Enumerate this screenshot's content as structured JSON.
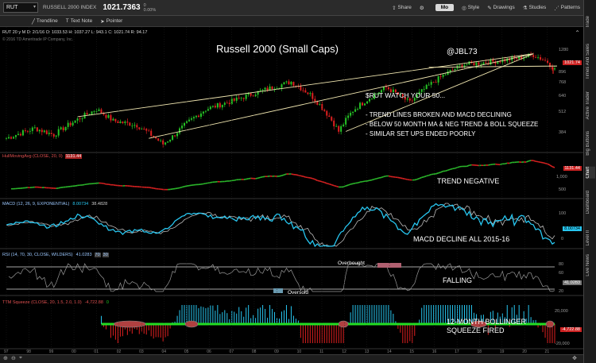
{
  "topbar": {
    "symbol": "RUT",
    "index_name": "RUSSELL 2000 INDEX",
    "last": "1021.7363",
    "change": "0",
    "change_pct": "0.00%",
    "share": "Share",
    "period": "Mo",
    "style": "Style",
    "drawings": "Drawings",
    "studies": "Studies",
    "patterns": "Patterns"
  },
  "toolbar": {
    "trendline": "Trendline",
    "textnote": "Text Note",
    "pointer": "Pointer"
  },
  "ohlc": "RUT 20 y M  D: 2/1/16  O: 1033.53  H: 1037.27  L: 943.1  C: 1021.74  R: 94.17",
  "copyright": "© 2016 TD Ameritrade IP Company, Inc.",
  "sidebar": [
    "Trade",
    "Times And Sales",
    "Active Trader",
    "Big Buttons",
    "Chart",
    "Dashboard",
    "Level II",
    "Live News"
  ],
  "main": {
    "title": "Russell 2000 (Small Caps)",
    "handle": "@JBL73",
    "watch": "$RUT WATCH YOUR 50...",
    "bullets": [
      "- TREND LINES BROKEN AND MACD DECLINING",
      "- BELOW 50 MONTH MA & NEG TREND & BOLL SQUEEZE",
      "- SIMILAR SET UPS ENDED POORLY"
    ],
    "yticks": [
      "1280",
      "1024",
      "896",
      "768",
      "640",
      "512",
      "384"
    ],
    "last_tag": "1021.74"
  },
  "hull": {
    "label": "HullMovingAvg (CLOSE, 20, 0)",
    "value": "1131.44",
    "anno": "TREND NEGATIVE",
    "yticks": [
      "1,000",
      "500"
    ]
  },
  "macd": {
    "label": "MACD (12, 26, 9, EXPONENTIAL)",
    "v1": "8.00734",
    "v2": "38.4828",
    "anno": "MACD DECLINE ALL 2015-16",
    "yticks": [
      "100",
      "0"
    ]
  },
  "rsi": {
    "label": "RSI (14, 70, 30, CLOSE, WILDERS)",
    "value": "41.0283",
    "ob": "70",
    "os": "30",
    "overbought": "Overbought",
    "oversold": "Oversold",
    "anno": "FALLING",
    "yticks": [
      "80",
      "60",
      "20"
    ]
  },
  "ttm": {
    "label": "TTM Squeeze (CLOSE, 20, 1.5, 2.0, 1.0)",
    "value": "-4,722.88",
    "zero": "0",
    "anno": "12-MONTH BOLLINGER SQUEEZE FIRED",
    "yticks": [
      "20,000",
      "-20,000"
    ]
  },
  "xaxis": [
    "97",
    "98",
    "99",
    "00",
    "01",
    "02",
    "03",
    "04",
    "05",
    "06",
    "07",
    "08",
    "09",
    "10",
    "11",
    "12",
    "13",
    "14",
    "15",
    "16",
    "17",
    "18",
    "19",
    "20",
    "21"
  ],
  "colors": {
    "up": "#26c426",
    "down": "#e02020",
    "hull_up": "#2ab52a",
    "hull_down": "#d42020",
    "macd": "#27c6f0",
    "trend": "#f0e6b0"
  }
}
